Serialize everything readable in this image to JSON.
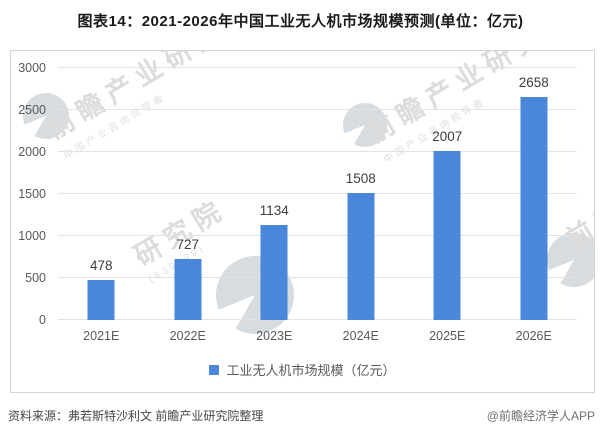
{
  "chart_data": {
    "type": "bar",
    "title": "图表14：2021-2026年中国工业无人机市场规模预测(单位：亿元)",
    "categories": [
      "2021E",
      "2022E",
      "2023E",
      "2024E",
      "2025E",
      "2026E"
    ],
    "values": [
      478,
      727,
      1134,
      1508,
      2007,
      2658
    ],
    "series_name": "工业无人机市场规模（亿元）",
    "ylabel": "",
    "xlabel": "",
    "ylim": [
      0,
      3000
    ],
    "yticks": [
      0,
      500,
      1000,
      1500,
      2000,
      2500,
      3000
    ],
    "grid": true,
    "legend_position": "bottom",
    "bar_color": "#4a86d9",
    "data_labels": true
  },
  "footer": {
    "source": "资料来源：弗若斯特沙利文 前瞻产业研究院整理",
    "credit": "@前瞻经济学人APP"
  },
  "watermark": {
    "brand": "前瞻产业研究院",
    "brand_partial": "研究院",
    "tagline": "中国产业咨询领导者",
    "code": "(839599)"
  }
}
